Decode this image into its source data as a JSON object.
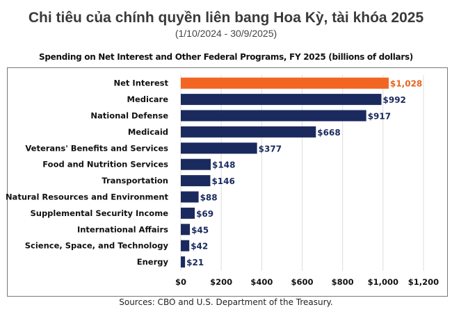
{
  "title": "Chi tiêu của chính quyền liên bang Hoa Kỳ, tài khóa 2025",
  "subtitle": "(1/10/2024 - 30/9/2025)",
  "source": "Sources: CBO and U.S. Department of the Treasury.",
  "colors": {
    "highlight": "#f26522",
    "bar": "#1b2a5e",
    "highlight_label": "#e8641e"
  },
  "chart_data": {
    "type": "bar",
    "orientation": "horizontal",
    "title": "Spending on Net Interest and Other Federal Programs, FY 2025 (billions of dollars)",
    "categories": [
      "Net Interest",
      "Medicare",
      "National Defense",
      "Medicaid",
      "Veterans' Benefits and Services",
      "Food and Nutrition Services",
      "Transportation",
      "Natural Resources and Environment",
      "Supplemental Security Income",
      "International Affairs",
      "Science, Space, and Technology",
      "Energy"
    ],
    "values": [
      1028,
      992,
      917,
      668,
      377,
      148,
      146,
      88,
      69,
      45,
      42,
      21
    ],
    "data_labels": [
      "$1,028",
      "$992",
      "$917",
      "$668",
      "$377",
      "$148",
      "$146",
      "$88",
      "$69",
      "$45",
      "$42",
      "$21"
    ],
    "highlight_index": 0,
    "xlim": [
      0,
      1200
    ],
    "xticks": [
      0,
      200,
      400,
      600,
      800,
      1000,
      1200
    ],
    "xtick_labels": [
      "$0",
      "$200",
      "$400",
      "$600",
      "$800",
      "$1,000",
      "$1,200"
    ],
    "grid": "vertical"
  }
}
